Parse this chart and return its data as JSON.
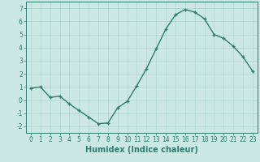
{
  "x": [
    0,
    1,
    2,
    3,
    4,
    5,
    6,
    7,
    8,
    9,
    10,
    11,
    12,
    13,
    14,
    15,
    16,
    17,
    18,
    19,
    20,
    21,
    22,
    23
  ],
  "y": [
    0.9,
    1.0,
    0.2,
    0.3,
    -0.3,
    -0.8,
    -1.3,
    -1.8,
    -1.75,
    -0.6,
    -0.1,
    1.1,
    2.4,
    3.9,
    5.4,
    6.5,
    6.9,
    6.7,
    6.2,
    5.0,
    4.7,
    4.1,
    3.3,
    2.2
  ],
  "line_color": "#2e7d6e",
  "marker": "+",
  "marker_size": 3.5,
  "line_width": 1.0,
  "xlabel": "Humidex (Indice chaleur)",
  "xlim": [
    -0.5,
    23.5
  ],
  "ylim": [
    -2.5,
    7.5
  ],
  "yticks": [
    -2,
    -1,
    0,
    1,
    2,
    3,
    4,
    5,
    6,
    7
  ],
  "xticks": [
    0,
    1,
    2,
    3,
    4,
    5,
    6,
    7,
    8,
    9,
    10,
    11,
    12,
    13,
    14,
    15,
    16,
    17,
    18,
    19,
    20,
    21,
    22,
    23
  ],
  "background_color": "#cce8e4",
  "grid_color": "#aed4ce",
  "font_color": "#2e7d6e",
  "xlabel_fontsize": 7,
  "tick_fontsize": 5.5
}
